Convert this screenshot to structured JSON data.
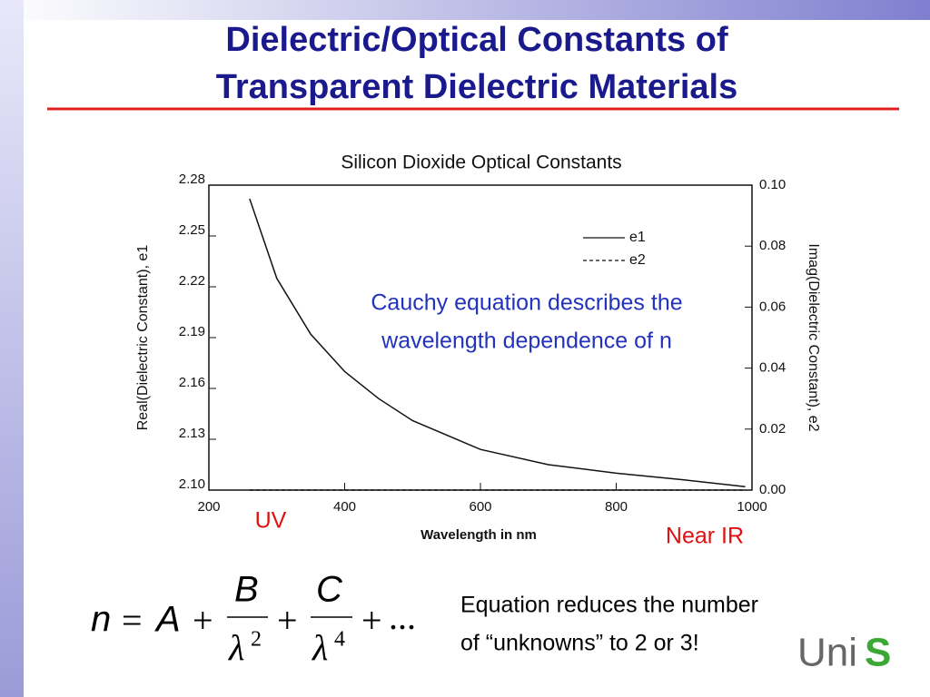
{
  "slide": {
    "title_lines": [
      "Dielectric/Optical Constants of",
      "Transparent Dielectric Materials"
    ],
    "note_lines": [
      "Equation reduces the number",
      "of “unknowns” to 2 or 3!"
    ],
    "equation": {
      "lhs": "n",
      "eq": "=",
      "a": "A",
      "plus": "+",
      "b": "B",
      "c": "C",
      "lambda": "λ",
      "p2": "2",
      "p4": "4",
      "ellipsis": "..."
    },
    "logo": {
      "text": "Uni",
      "accent": "S"
    }
  },
  "chart_data": {
    "type": "line",
    "title": "Silicon Dioxide Optical Constants",
    "x_label": "Wavelength in nm",
    "y_label": "Real(Dielectric Constant), e1",
    "y2_label": "Imag(Dielectric Constant), e2",
    "xlim": [
      200,
      1000
    ],
    "xticks": [
      200,
      400,
      600,
      800,
      1000
    ],
    "ylim": [
      2.1,
      2.28
    ],
    "yticks": [
      {
        "value": 2.1,
        "label": "2.10"
      },
      2.13,
      2.16,
      2.19,
      2.22,
      2.25,
      2.28
    ],
    "y2lim": [
      0,
      0.1
    ],
    "y2ticks": [
      {
        "value": 0,
        "label": "0.00"
      },
      0.02,
      0.04,
      0.06,
      0.08,
      {
        "value": 0.1,
        "label": "0.10"
      }
    ],
    "series": [
      {
        "name": "e1",
        "color": "#111111",
        "line_style": "solid",
        "x": [
          260,
          300,
          350,
          400,
          450,
          500,
          600,
          700,
          800,
          900,
          990
        ],
        "values": [
          2.272,
          2.225,
          2.192,
          2.17,
          2.154,
          2.141,
          2.124,
          2.115,
          2.11,
          2.106,
          2.102
        ]
      },
      {
        "name": "e2",
        "color": "#111111",
        "line_style": "dashed",
        "axis": "y2",
        "x": [
          260,
          990
        ],
        "values": [
          0,
          0
        ]
      }
    ],
    "annotations": [
      {
        "lines": [
          "Cauchy equation describes the",
          "wavelength dependence of n"
        ],
        "color": "#2233bb"
      },
      {
        "lines": [
          "UV"
        ],
        "color": "#e01010"
      },
      {
        "lines": [
          "Near IR"
        ],
        "color": "#e01010"
      }
    ]
  }
}
